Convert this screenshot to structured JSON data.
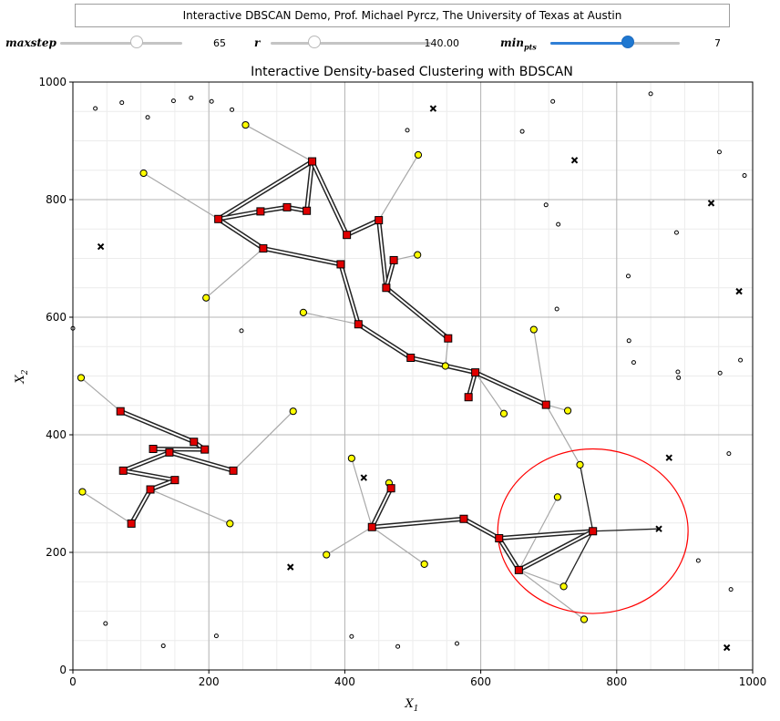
{
  "banner": {
    "text": "Interactive DBSCAN Demo, Prof. Michael Pyrcz, The University of Texas at Austin"
  },
  "controls": [
    {
      "label": "maxstep",
      "sub": "",
      "value_text": "65",
      "fraction": 0.63
    },
    {
      "label": "r",
      "sub": "",
      "value_text": "140.00",
      "fraction": 0.27
    },
    {
      "label": "min",
      "sub": "pts",
      "value_text": "7",
      "fraction": 0.6
    }
  ],
  "colors": {
    "core": "#e00000",
    "border": "#ffff00",
    "noise": "#000000",
    "link": "#222222",
    "reach": "#a8a8a8",
    "circle": "#ff0000",
    "slider_fill": "#2f7fd6"
  },
  "chart_data": {
    "type": "scatter",
    "title": "Interactive Density-based Clustering with BDSCAN",
    "xlabel": "X",
    "xlabel_sub": "1",
    "ylabel": "X",
    "ylabel_sub": "2",
    "xlim": [
      0,
      1000
    ],
    "ylim": [
      0,
      1000
    ],
    "xticks": [
      0,
      200,
      400,
      600,
      800,
      1000
    ],
    "yticks": [
      0,
      200,
      400,
      600,
      800,
      1000
    ],
    "grid": true,
    "highlight_circle": {
      "center": [
        765,
        236
      ],
      "radius": 140
    },
    "core_points": [
      [
        352,
        865
      ],
      [
        214,
        767
      ],
      [
        276,
        780
      ],
      [
        315,
        787
      ],
      [
        344,
        781
      ],
      [
        403,
        740
      ],
      [
        450,
        765
      ],
      [
        472,
        697
      ],
      [
        461,
        650
      ],
      [
        280,
        717
      ],
      [
        394,
        690
      ],
      [
        420,
        588
      ],
      [
        552,
        564
      ],
      [
        497,
        531
      ],
      [
        592,
        506
      ],
      [
        582,
        464
      ],
      [
        696,
        451
      ],
      [
        70,
        440
      ],
      [
        178,
        388
      ],
      [
        194,
        375
      ],
      [
        118,
        376
      ],
      [
        142,
        370
      ],
      [
        74,
        339
      ],
      [
        236,
        339
      ],
      [
        150,
        323
      ],
      [
        114,
        307
      ],
      [
        86,
        249
      ],
      [
        440,
        243
      ],
      [
        468,
        309
      ],
      [
        575,
        257
      ],
      [
        627,
        224
      ],
      [
        656,
        170
      ],
      [
        765,
        236
      ]
    ],
    "core_links": [
      [
        [
          214,
          767
        ],
        [
          352,
          865
        ]
      ],
      [
        [
          214,
          767
        ],
        [
          276,
          780
        ]
      ],
      [
        [
          276,
          780
        ],
        [
          315,
          787
        ]
      ],
      [
        [
          315,
          787
        ],
        [
          344,
          781
        ]
      ],
      [
        [
          344,
          781
        ],
        [
          352,
          865
        ]
      ],
      [
        [
          352,
          865
        ],
        [
          403,
          740
        ]
      ],
      [
        [
          403,
          740
        ],
        [
          450,
          765
        ]
      ],
      [
        [
          450,
          765
        ],
        [
          461,
          650
        ]
      ],
      [
        [
          461,
          650
        ],
        [
          472,
          697
        ]
      ],
      [
        [
          214,
          767
        ],
        [
          280,
          717
        ]
      ],
      [
        [
          280,
          717
        ],
        [
          394,
          690
        ]
      ],
      [
        [
          394,
          690
        ],
        [
          420,
          588
        ]
      ],
      [
        [
          420,
          588
        ],
        [
          497,
          531
        ]
      ],
      [
        [
          461,
          650
        ],
        [
          552,
          564
        ]
      ],
      [
        [
          497,
          531
        ],
        [
          592,
          506
        ]
      ],
      [
        [
          592,
          506
        ],
        [
          582,
          464
        ]
      ],
      [
        [
          592,
          506
        ],
        [
          696,
          451
        ]
      ],
      [
        [
          70,
          440
        ],
        [
          178,
          388
        ]
      ],
      [
        [
          178,
          388
        ],
        [
          194,
          375
        ]
      ],
      [
        [
          118,
          376
        ],
        [
          194,
          375
        ]
      ],
      [
        [
          142,
          370
        ],
        [
          74,
          339
        ]
      ],
      [
        [
          142,
          370
        ],
        [
          236,
          339
        ]
      ],
      [
        [
          74,
          339
        ],
        [
          150,
          323
        ]
      ],
      [
        [
          150,
          323
        ],
        [
          114,
          307
        ]
      ],
      [
        [
          114,
          307
        ],
        [
          86,
          249
        ]
      ],
      [
        [
          440,
          243
        ],
        [
          468,
          309
        ]
      ],
      [
        [
          440,
          243
        ],
        [
          575,
          257
        ]
      ],
      [
        [
          575,
          257
        ],
        [
          627,
          224
        ]
      ],
      [
        [
          627,
          224
        ],
        [
          656,
          170
        ]
      ],
      [
        [
          627,
          224
        ],
        [
          765,
          236
        ]
      ],
      [
        [
          656,
          170
        ],
        [
          765,
          236
        ]
      ]
    ],
    "border_points": [
      [
        254,
        927
      ],
      [
        104,
        845
      ],
      [
        508,
        876
      ],
      [
        507,
        706
      ],
      [
        196,
        633
      ],
      [
        339,
        608
      ],
      [
        548,
        517
      ],
      [
        634,
        436
      ],
      [
        678,
        579
      ],
      [
        728,
        441
      ],
      [
        12,
        497
      ],
      [
        324,
        440
      ],
      [
        14,
        303
      ],
      [
        231,
        249
      ],
      [
        410,
        360
      ],
      [
        465,
        318
      ],
      [
        373,
        196
      ],
      [
        517,
        180
      ],
      [
        746,
        349
      ],
      [
        713,
        294
      ],
      [
        722,
        142
      ],
      [
        752,
        86
      ]
    ],
    "reach_links": [
      [
        [
          254,
          927
        ],
        [
          352,
          865
        ]
      ],
      [
        [
          104,
          845
        ],
        [
          214,
          767
        ]
      ],
      [
        [
          508,
          876
        ],
        [
          450,
          765
        ]
      ],
      [
        [
          507,
          706
        ],
        [
          472,
          697
        ]
      ],
      [
        [
          196,
          633
        ],
        [
          280,
          717
        ]
      ],
      [
        [
          339,
          608
        ],
        [
          420,
          588
        ]
      ],
      [
        [
          548,
          517
        ],
        [
          552,
          564
        ]
      ],
      [
        [
          634,
          436
        ],
        [
          592,
          506
        ]
      ],
      [
        [
          678,
          579
        ],
        [
          696,
          451
        ]
      ],
      [
        [
          728,
          441
        ],
        [
          696,
          451
        ]
      ],
      [
        [
          12,
          497
        ],
        [
          70,
          440
        ]
      ],
      [
        [
          324,
          440
        ],
        [
          236,
          339
        ]
      ],
      [
        [
          14,
          303
        ],
        [
          86,
          249
        ]
      ],
      [
        [
          231,
          249
        ],
        [
          114,
          307
        ]
      ],
      [
        [
          410,
          360
        ],
        [
          440,
          243
        ]
      ],
      [
        [
          465,
          318
        ],
        [
          468,
          309
        ]
      ],
      [
        [
          373,
          196
        ],
        [
          440,
          243
        ]
      ],
      [
        [
          517,
          180
        ],
        [
          440,
          243
        ]
      ],
      [
        [
          746,
          349
        ],
        [
          696,
          451
        ]
      ],
      [
        [
          713,
          294
        ],
        [
          656,
          170
        ]
      ],
      [
        [
          722,
          142
        ],
        [
          656,
          170
        ]
      ],
      [
        [
          752,
          86
        ],
        [
          656,
          170
        ]
      ]
    ],
    "cursor_links": [
      [
        [
          765,
          236
        ],
        [
          862,
          240
        ]
      ],
      [
        [
          765,
          236
        ],
        [
          746,
          349
        ]
      ],
      [
        [
          765,
          236
        ],
        [
          722,
          142
        ]
      ]
    ],
    "noise_points": [
      [
        33,
        955
      ],
      [
        72,
        965
      ],
      [
        110,
        940
      ],
      [
        148,
        968
      ],
      [
        174,
        973
      ],
      [
        204,
        967
      ],
      [
        234,
        953
      ],
      [
        661,
        916
      ],
      [
        492,
        918
      ],
      [
        706,
        967
      ],
      [
        850,
        980
      ],
      [
        951,
        881
      ],
      [
        988,
        841
      ],
      [
        696,
        791
      ],
      [
        714,
        758
      ],
      [
        888,
        744
      ],
      [
        817,
        670
      ],
      [
        712,
        614
      ],
      [
        0,
        581
      ],
      [
        248,
        577
      ],
      [
        818,
        560
      ],
      [
        825,
        523
      ],
      [
        982,
        527
      ],
      [
        890,
        507
      ],
      [
        891,
        497
      ],
      [
        952,
        505
      ],
      [
        965,
        368
      ],
      [
        920,
        186
      ],
      [
        968,
        137
      ],
      [
        48,
        79
      ],
      [
        211,
        58
      ],
      [
        133,
        41
      ],
      [
        410,
        57
      ],
      [
        478,
        40
      ],
      [
        565,
        45
      ]
    ],
    "noise_x_points": [
      [
        530,
        955
      ],
      [
        738,
        867
      ],
      [
        939,
        794
      ],
      [
        41,
        720
      ],
      [
        980,
        644
      ],
      [
        877,
        361
      ],
      [
        428,
        327
      ],
      [
        320,
        175
      ],
      [
        862,
        240
      ],
      [
        962,
        38
      ]
    ]
  }
}
